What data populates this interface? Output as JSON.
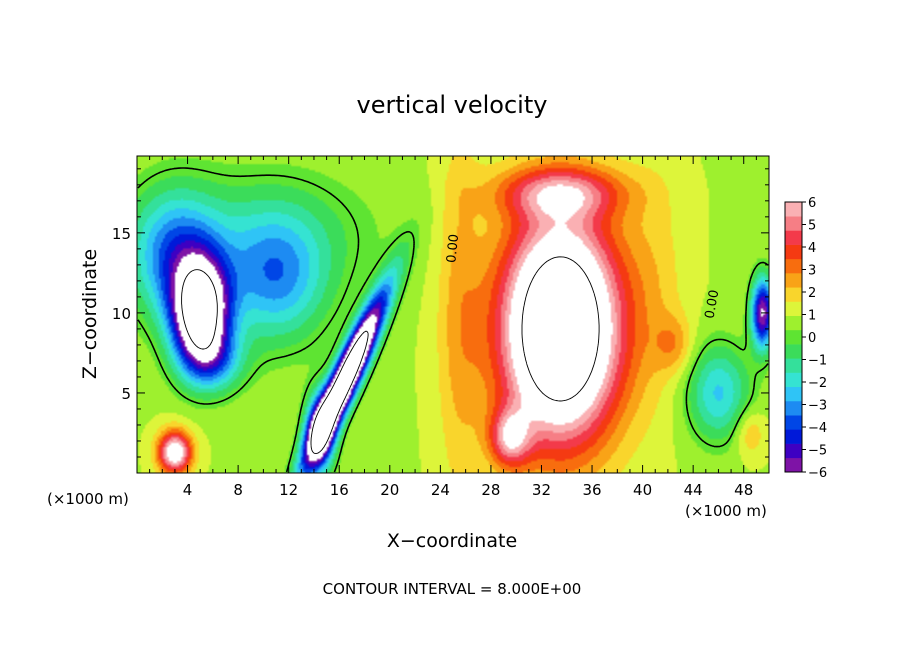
{
  "chart_data": {
    "type": "heatmap",
    "title": "vertical velocity",
    "xlabel": "X−coordinate",
    "ylabel": "Z−coordinate",
    "x_unit_label": "(×1000 m)",
    "x_unit_label_right": "(×1000 m)",
    "footer": "CONTOUR INTERVAL = 8.000E+00",
    "xlim": [
      0,
      50
    ],
    "ylim": [
      0,
      19.8
    ],
    "x_ticks": [
      4,
      8,
      12,
      16,
      20,
      24,
      28,
      32,
      36,
      40,
      44,
      48
    ],
    "y_ticks": [
      5,
      10,
      15
    ],
    "x_tick_labels": [
      "4",
      "8",
      "12",
      "16",
      "20",
      "24",
      "28",
      "32",
      "36",
      "40",
      "44",
      "48"
    ],
    "y_tick_labels": [
      "5",
      "10",
      "15"
    ],
    "colorbar": {
      "min": -6,
      "max": 6,
      "tick_values": [
        6,
        5,
        4,
        3,
        2,
        1,
        0,
        -1,
        -2,
        -3,
        -4,
        -5,
        -6
      ],
      "tick_labels": [
        "6",
        "5",
        "4",
        "3",
        "2",
        "1",
        "0",
        "−1",
        "−2",
        "−3",
        "−4",
        "−5",
        "−6"
      ],
      "colors": [
        "#7e13a6",
        "#3e00c2",
        "#0019d9",
        "#0046e6",
        "#1d8bf2",
        "#2fc4f6",
        "#35e3d2",
        "#34e09b",
        "#3bdc5a",
        "#5ee432",
        "#9ef02e",
        "#ddf53a",
        "#f9d52c",
        "#f9a317",
        "#f86d0e",
        "#f53a12",
        "#f33a4a",
        "#f67e85",
        "#fab0b3"
      ],
      "saturate_high": "#ffffff",
      "saturate_low": "#ffffff"
    },
    "contour_labels": [
      {
        "text": "0.00",
        "x": 25.3,
        "y": 14.0,
        "rotation": -84
      },
      {
        "text": "0.00",
        "x": 45.8,
        "y": 10.5,
        "rotation": -80
      }
    ],
    "features": [
      {
        "name": "updraft-core",
        "x": 33.5,
        "z": 8.5,
        "w": 9.5
      },
      {
        "name": "downdraft-left",
        "x": 5,
        "z": 9.5,
        "w": -9
      },
      {
        "name": "downdraft-middle",
        "x": 16.5,
        "z": 6.5,
        "w": -10
      },
      {
        "name": "updraft-near-surface",
        "x": 3,
        "z": 1.3,
        "w": 5
      }
    ]
  }
}
